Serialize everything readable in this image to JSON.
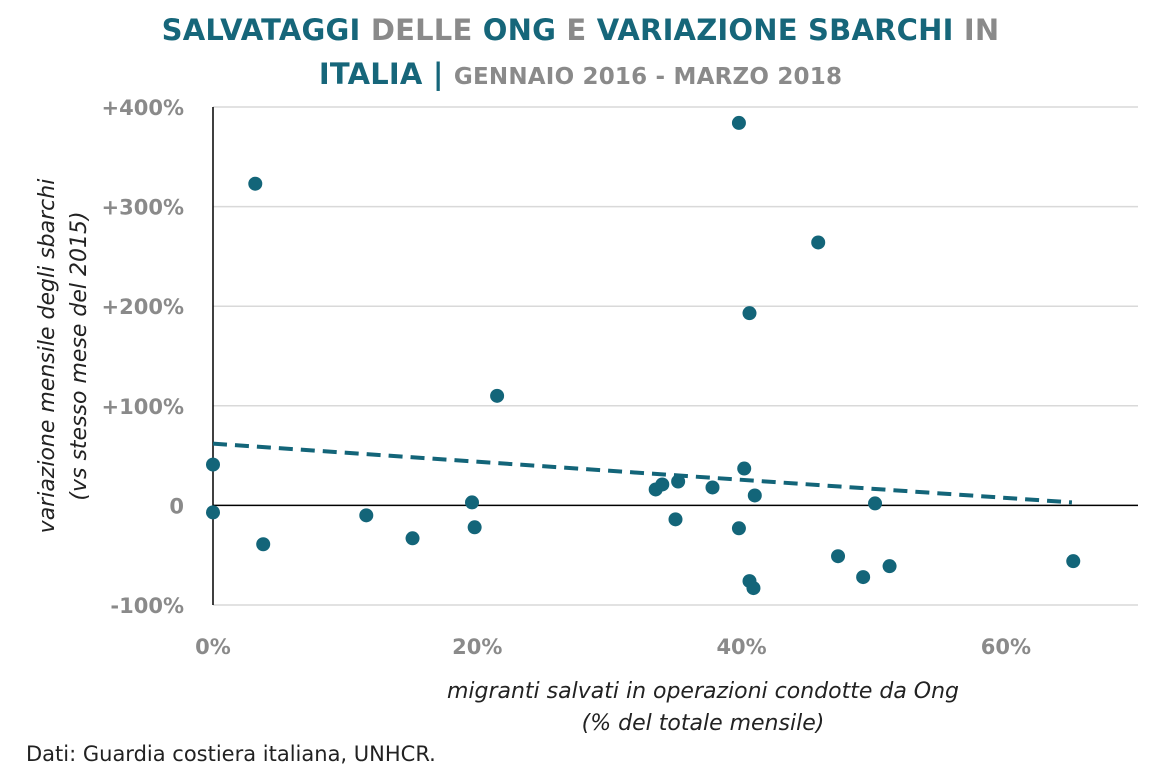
{
  "title": {
    "part1": "SALVATAGGI",
    "part2": " DELLE ",
    "part3": "ONG",
    "part4": " E ",
    "part5": "VARIAZIONE SBARCHI",
    "part6": " IN",
    "part7": "ITALIA",
    "part8": " | ",
    "subtitle": "GENNAIO 2016 - MARZO 2018"
  },
  "source": "Dati: Guardia costiera italiana, UNHCR.",
  "colors": {
    "title_accent": "#16667a",
    "title_gray": "#8a8a8a",
    "points": "#136579",
    "trend": "#136579",
    "grid": "#d9d9d9",
    "tick_labels": "#8a8a8a"
  },
  "chart_data": {
    "type": "scatter",
    "title": "SALVATAGGI DELLE ONG E VARIAZIONE SBARCHI IN ITALIA | GENNAIO 2016 - MARZO 2018",
    "xlabel_lines": [
      "migranti salvati in operazioni condotte da Ong",
      "(% del totale mensile)"
    ],
    "ylabel_lines": [
      "variazione mensile degli sbarchi",
      "(vs stesso mese del 2015)"
    ],
    "xlim": [
      0,
      70
    ],
    "ylim": [
      -100,
      400
    ],
    "x_ticks": [
      0,
      20,
      40,
      60
    ],
    "x_tick_labels": [
      "0%",
      "20%",
      "40%",
      "60%"
    ],
    "y_ticks": [
      -100,
      0,
      100,
      200,
      300,
      400
    ],
    "y_tick_labels": [
      "-100%",
      "0",
      "+100%",
      "+200%",
      "+300%",
      "+400%"
    ],
    "grid": "horizontal",
    "trendline": {
      "style": "dashed",
      "x": [
        0,
        65
      ],
      "y": [
        62,
        3
      ]
    },
    "points": [
      {
        "x": 0,
        "y": 41
      },
      {
        "x": 0,
        "y": -7
      },
      {
        "x": 3.2,
        "y": 323
      },
      {
        "x": 3.8,
        "y": -39
      },
      {
        "x": 11.6,
        "y": -10
      },
      {
        "x": 15.1,
        "y": -33
      },
      {
        "x": 19.6,
        "y": 3
      },
      {
        "x": 19.8,
        "y": -22
      },
      {
        "x": 21.5,
        "y": 110
      },
      {
        "x": 33.5,
        "y": 16
      },
      {
        "x": 34,
        "y": 21
      },
      {
        "x": 35.2,
        "y": 24
      },
      {
        "x": 35,
        "y": -14
      },
      {
        "x": 37.8,
        "y": 18
      },
      {
        "x": 39.8,
        "y": 384
      },
      {
        "x": 39.8,
        "y": -23
      },
      {
        "x": 40.2,
        "y": 37
      },
      {
        "x": 40.6,
        "y": 193
      },
      {
        "x": 40.6,
        "y": -76
      },
      {
        "x": 40.9,
        "y": -83
      },
      {
        "x": 41,
        "y": 10
      },
      {
        "x": 45.8,
        "y": 264
      },
      {
        "x": 47.3,
        "y": -51
      },
      {
        "x": 49.2,
        "y": -72
      },
      {
        "x": 50.1,
        "y": 2
      },
      {
        "x": 51.2,
        "y": -61
      },
      {
        "x": 65.1,
        "y": -56
      }
    ]
  }
}
